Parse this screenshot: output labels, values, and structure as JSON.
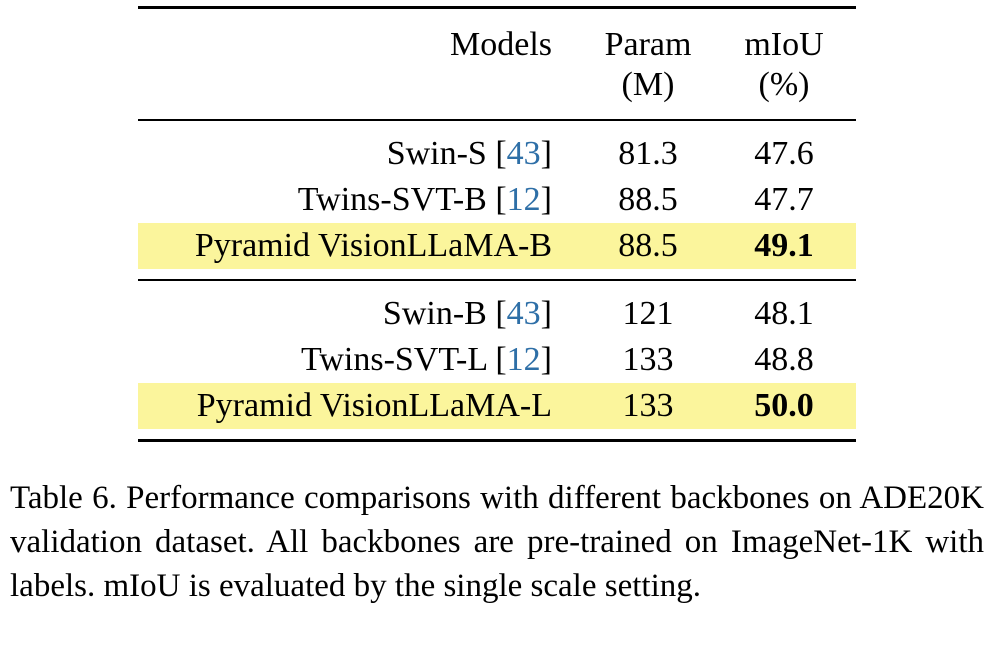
{
  "table": {
    "headers": {
      "models": "Models",
      "param_line1": "Param",
      "param_line2": "(M)",
      "miou_line1": "mIoU",
      "miou_line2": "(%)"
    },
    "groups": [
      {
        "rows": [
          {
            "model": "Swin-S",
            "cite": "43",
            "param": "81.3",
            "miou": "47.6",
            "highlight": false,
            "bold": false
          },
          {
            "model": "Twins-SVT-B",
            "cite": "12",
            "param": "88.5",
            "miou": "47.7",
            "highlight": false,
            "bold": false
          },
          {
            "model": "Pyramid VisionLLaMA-B",
            "cite": "",
            "param": "88.5",
            "miou": "49.1",
            "highlight": true,
            "bold": true
          }
        ]
      },
      {
        "rows": [
          {
            "model": "Swin-B",
            "cite": "43",
            "param": "121",
            "miou": "48.1",
            "highlight": false,
            "bold": false
          },
          {
            "model": "Twins-SVT-L",
            "cite": "12",
            "param": "133",
            "miou": "48.8",
            "highlight": false,
            "bold": false
          },
          {
            "model": "Pyramid VisionLLaMA-L",
            "cite": "",
            "param": "133",
            "miou": "50.0",
            "highlight": true,
            "bold": true
          }
        ]
      }
    ]
  },
  "caption": "Table 6.  Performance comparisons with different backbones on ADE20K validation dataset.  All backbones are pre-trained on ImageNet-1K with labels.  mIoU is evaluated by the single scale setting."
}
